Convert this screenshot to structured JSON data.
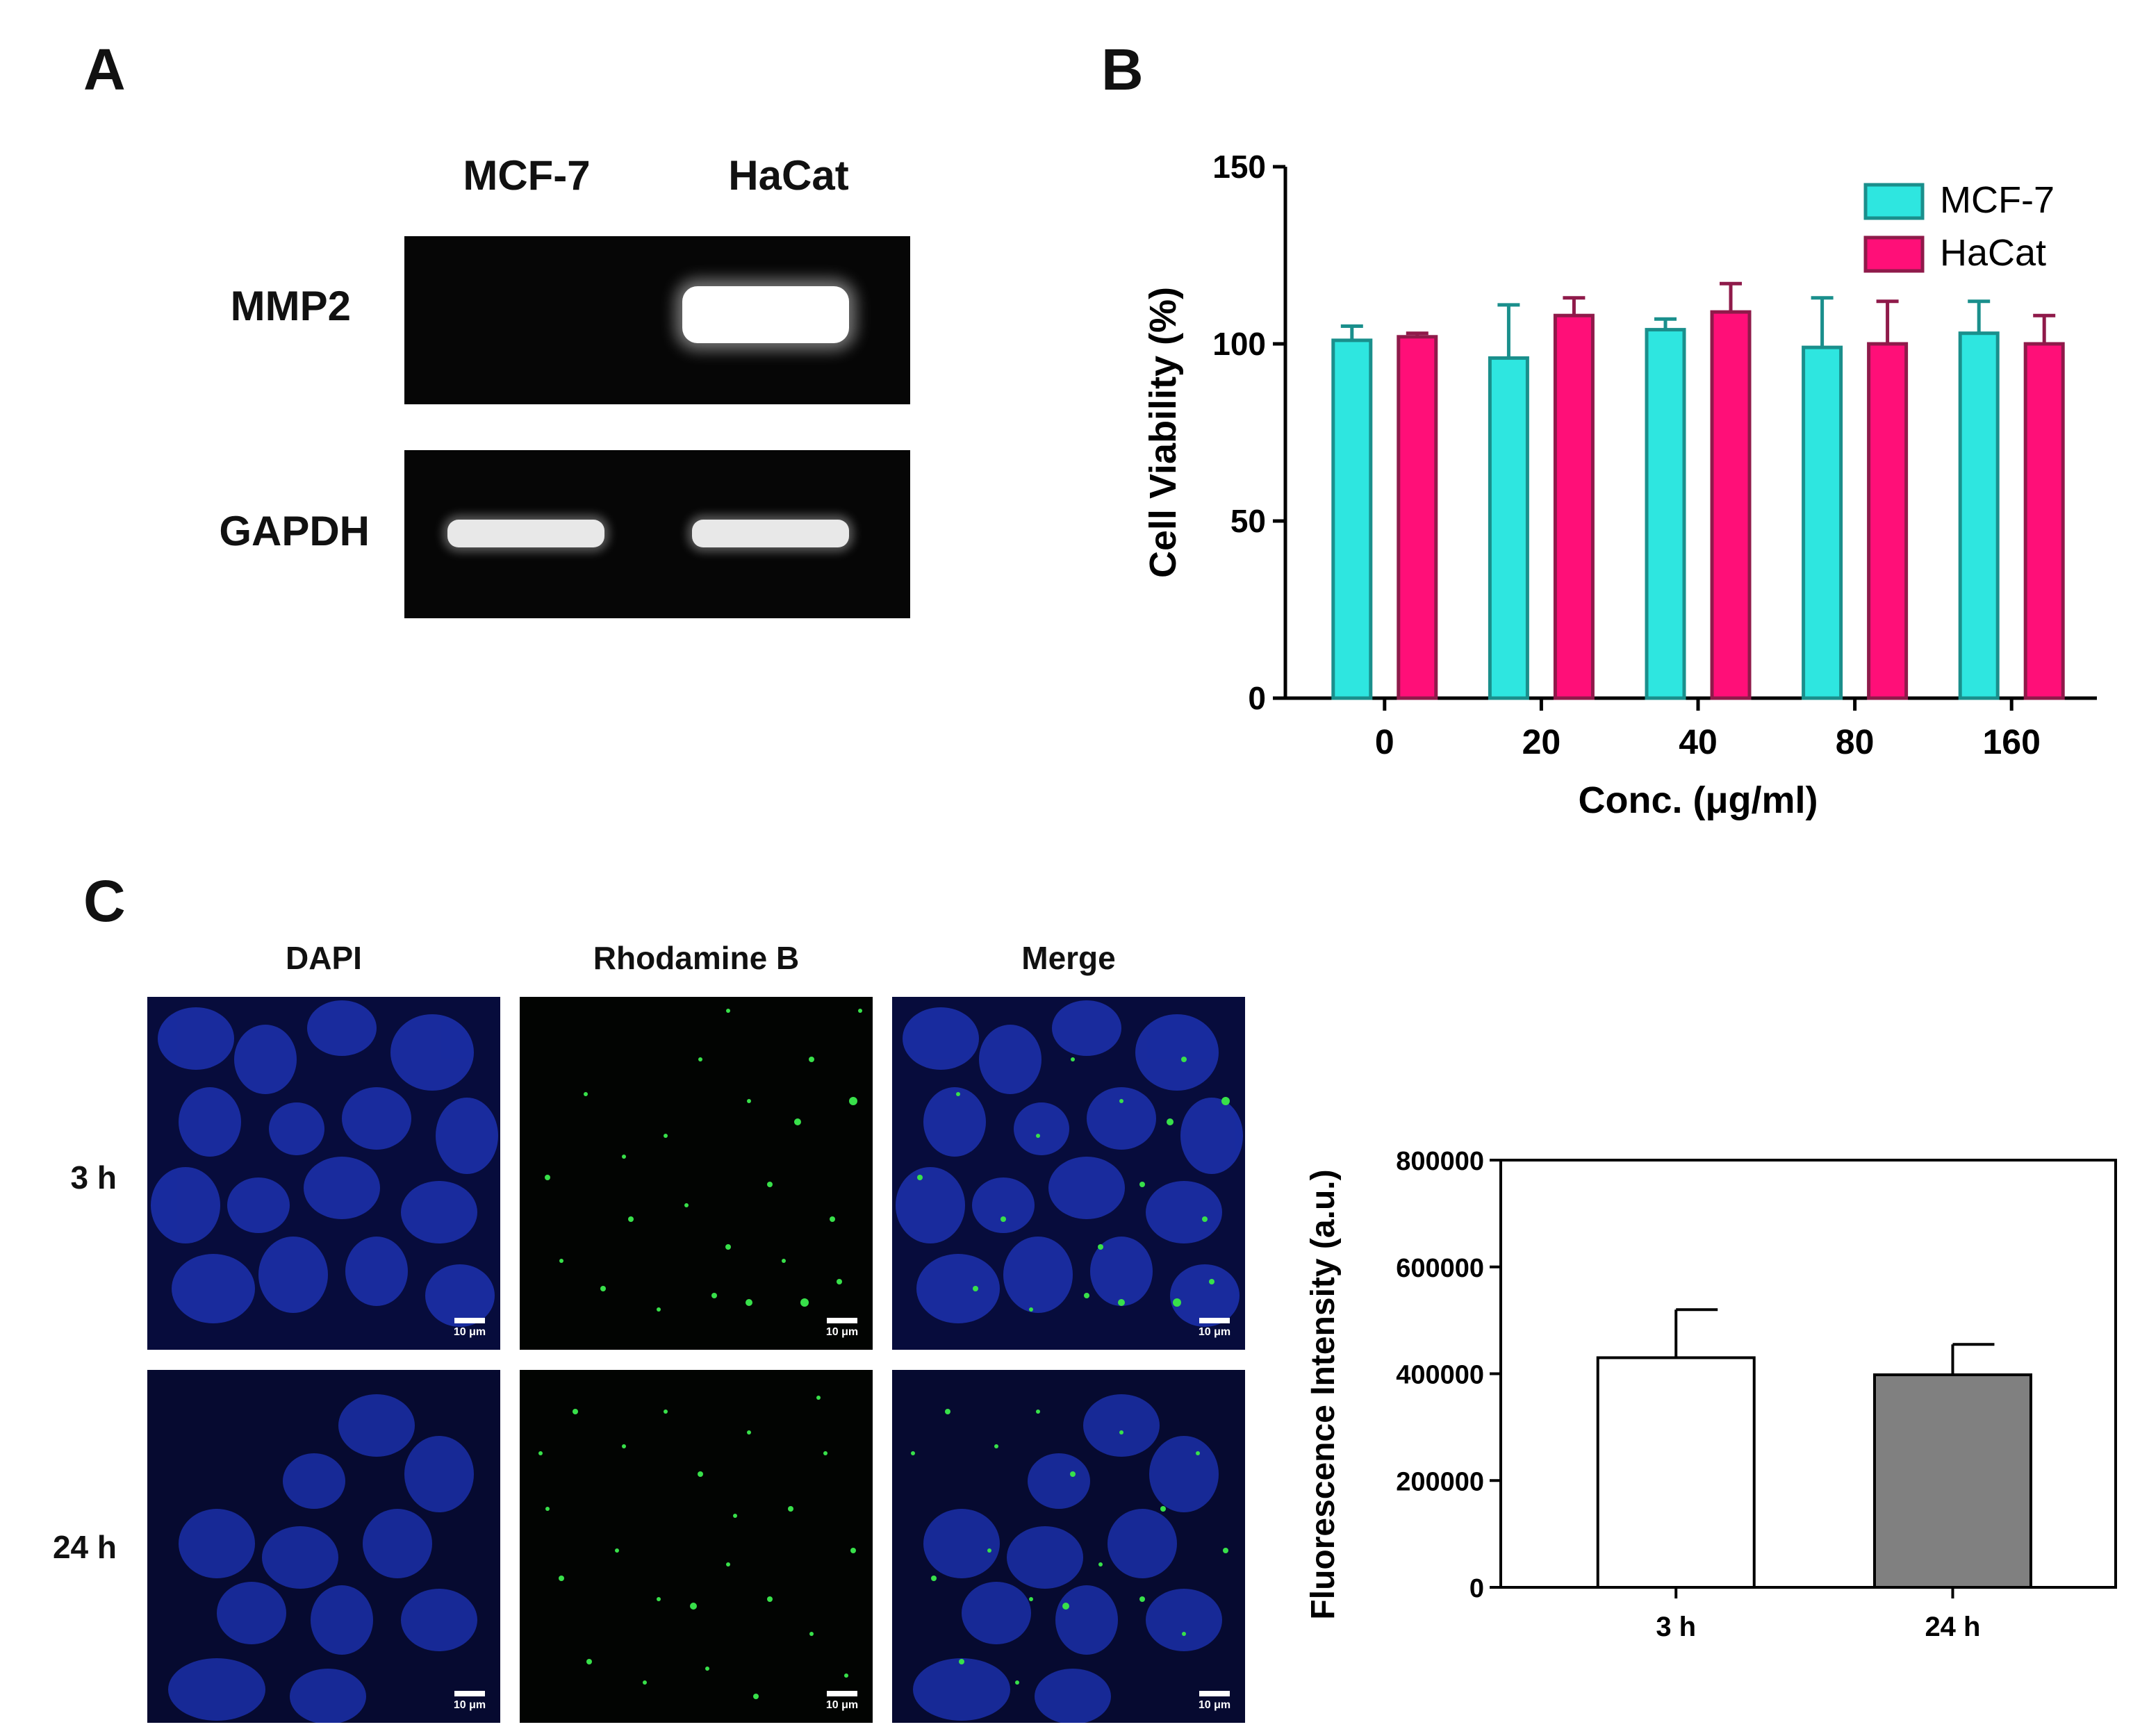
{
  "panel_a": {
    "letter": "A",
    "columns": [
      "MCF-7",
      "HaCat"
    ],
    "rows": [
      "MMP2",
      "GAPDH"
    ]
  },
  "panel_b": {
    "letter": "B"
  },
  "panel_c": {
    "letter": "C",
    "columns": [
      "DAPI",
      "Rhodamine B",
      "Merge"
    ],
    "rows": [
      "3 h",
      "24 h"
    ],
    "scalebar": "10 μm"
  },
  "colors": {
    "mcf7": "#2ee6e0",
    "mcf7_edge": "#1a8f8c",
    "hacat": "#ff0f78",
    "hacat_edge": "#8f1a4a",
    "bar_3h": "#ffffff",
    "bar_24h": "#808080",
    "dapi": "#1b2fa8",
    "rhodamine": "#38e04a"
  },
  "chart_data": [
    {
      "type": "bar",
      "title": "",
      "xlabel": "Conc. (μg/ml)",
      "ylabel": "Cell Viability (%)",
      "categories": [
        "0",
        "20",
        "40",
        "80",
        "160"
      ],
      "ylim": [
        0,
        150
      ],
      "yticks": [
        0,
        50,
        100,
        150
      ],
      "legend_position": "top-right",
      "series": [
        {
          "name": "MCF-7",
          "values": [
            101,
            96,
            104,
            99,
            103
          ],
          "errors": [
            4,
            15,
            3,
            14,
            9
          ]
        },
        {
          "name": "HaCat",
          "values": [
            102,
            108,
            109,
            100,
            100
          ],
          "errors": [
            1,
            5,
            8,
            12,
            8
          ]
        }
      ]
    },
    {
      "type": "bar",
      "title": "",
      "xlabel": "",
      "ylabel": "Fluorescence Intensity (a.u.)",
      "categories": [
        "3 h",
        "24 h"
      ],
      "ylim": [
        0,
        800000
      ],
      "yticks": [
        0,
        200000,
        400000,
        600000,
        800000
      ],
      "series": [
        {
          "values": [
            430000,
            398000
          ],
          "errors": [
            90000,
            57000
          ]
        }
      ]
    }
  ]
}
